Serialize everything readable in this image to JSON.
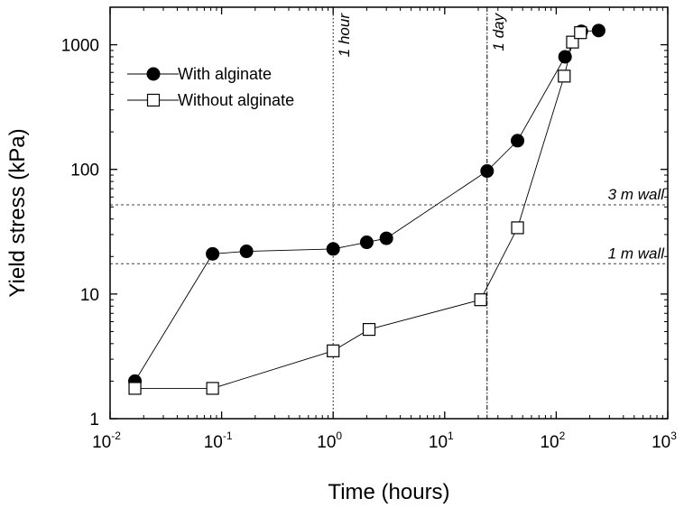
{
  "chart_data": {
    "type": "scatter",
    "xlabel": "Time (hours)",
    "ylabel": "Yield stress (kPa)",
    "x_scale": "log",
    "y_scale": "log",
    "xlim": [
      0.01,
      1000
    ],
    "ylim": [
      1,
      2000
    ],
    "x_ticks": [
      {
        "value": 0.01,
        "base": "10",
        "exp": "-2"
      },
      {
        "value": 0.1,
        "base": "10",
        "exp": "-1"
      },
      {
        "value": 1,
        "base": "10",
        "exp": "0"
      },
      {
        "value": 10,
        "base": "10",
        "exp": "1"
      },
      {
        "value": 100,
        "base": "10",
        "exp": "2"
      },
      {
        "value": 1000,
        "base": "10",
        "exp": "3"
      }
    ],
    "y_ticks": [
      {
        "value": 1,
        "label": "1"
      },
      {
        "value": 10,
        "label": "10"
      },
      {
        "value": 100,
        "label": "100"
      },
      {
        "value": 1000,
        "label": "1000"
      }
    ],
    "legend_position": "top-left",
    "series": [
      {
        "name": "With alginate",
        "marker": "filled-circle",
        "color": "#000000",
        "x": [
          0.0167,
          0.083,
          0.167,
          1.0,
          2.0,
          3.0,
          24,
          45,
          120,
          168,
          240
        ],
        "y": [
          2.0,
          21,
          22,
          23,
          26,
          28,
          97,
          170,
          800,
          1280,
          1300
        ]
      },
      {
        "name": "Without alginate",
        "marker": "open-square",
        "color": "#000000",
        "x": [
          0.0167,
          0.083,
          1.0,
          2.1,
          21,
          45,
          118,
          140,
          165
        ],
        "y": [
          1.75,
          1.75,
          3.5,
          5.2,
          9.0,
          34,
          560,
          1050,
          1250
        ]
      }
    ],
    "vertical_lines": [
      {
        "x": 1,
        "label": "1 hour",
        "style": "dotted"
      },
      {
        "x": 24,
        "label": "1 day",
        "style": "dashdot"
      }
    ],
    "horizontal_lines": [
      {
        "y": 52,
        "label": "3 m wall",
        "style": "dashed"
      },
      {
        "y": 17.5,
        "label": "1 m wall",
        "style": "dashed"
      }
    ]
  }
}
